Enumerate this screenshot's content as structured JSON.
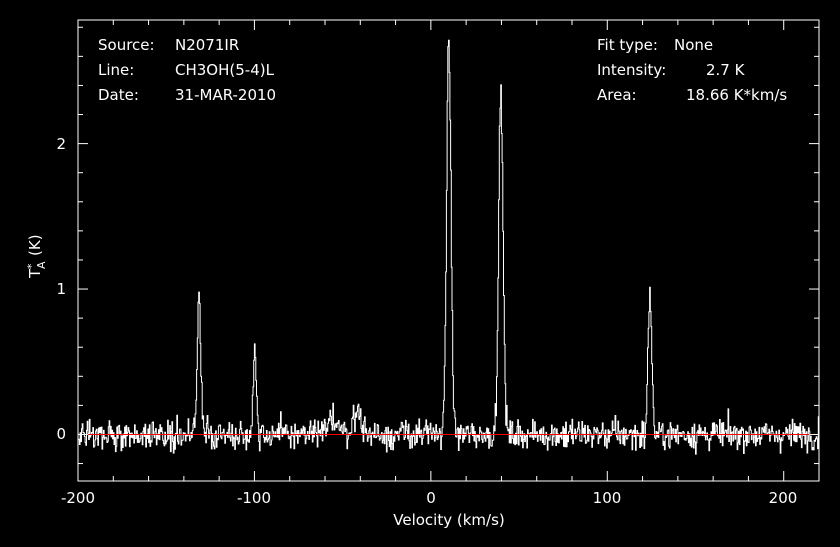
{
  "colors": {
    "background": "#000000",
    "foreground": "#ffffff",
    "baseline": "#ff0000"
  },
  "header": {
    "source_key": "Source:",
    "source_val": "N2071IR",
    "line_key": "Line:",
    "line_val": "CH3OH(5-4)L",
    "date_key": "Date:",
    "date_val": "31-MAR-2010",
    "fit_key": "Fit type:",
    "fit_val": "None",
    "int_key": "Intensity:",
    "int_val": "2.7 K",
    "area_key": "Area:",
    "area_val": "18.66 K*km/s"
  },
  "chart_data": {
    "type": "line",
    "xlabel": "Velocity (km/s)",
    "ylabel_main": "T",
    "ylabel_sup": "*",
    "ylabel_sub": "A",
    "ylabel_unit": "(K)",
    "xlim": [
      -200,
      220
    ],
    "ylim": [
      -0.32,
      2.85
    ],
    "xticks": [
      -200,
      -100,
      0,
      100,
      200
    ],
    "xtick_labels": [
      "-200",
      "-100",
      "0",
      "100",
      "200"
    ],
    "yticks": [
      0,
      1,
      2
    ],
    "ytick_labels": [
      "0",
      "1",
      "2"
    ],
    "grid": false,
    "baseline": 0,
    "noise_rms": 0.05,
    "channel_width_kms": 0.4,
    "peaks": [
      {
        "velocity": -131.5,
        "peak": 0.92,
        "fwhm": 2.4
      },
      {
        "velocity": -100,
        "peak": 0.53,
        "fwhm": 2.4
      },
      {
        "velocity": -55,
        "peak": 0.12,
        "fwhm": 6
      },
      {
        "velocity": -42,
        "peak": 0.15,
        "fwhm": 6
      },
      {
        "velocity": 10,
        "peak": 2.68,
        "fwhm": 3
      },
      {
        "velocity": 39.5,
        "peak": 2.34,
        "fwhm": 3
      },
      {
        "velocity": 124,
        "peak": 1.0,
        "fwhm": 2.4
      }
    ]
  }
}
